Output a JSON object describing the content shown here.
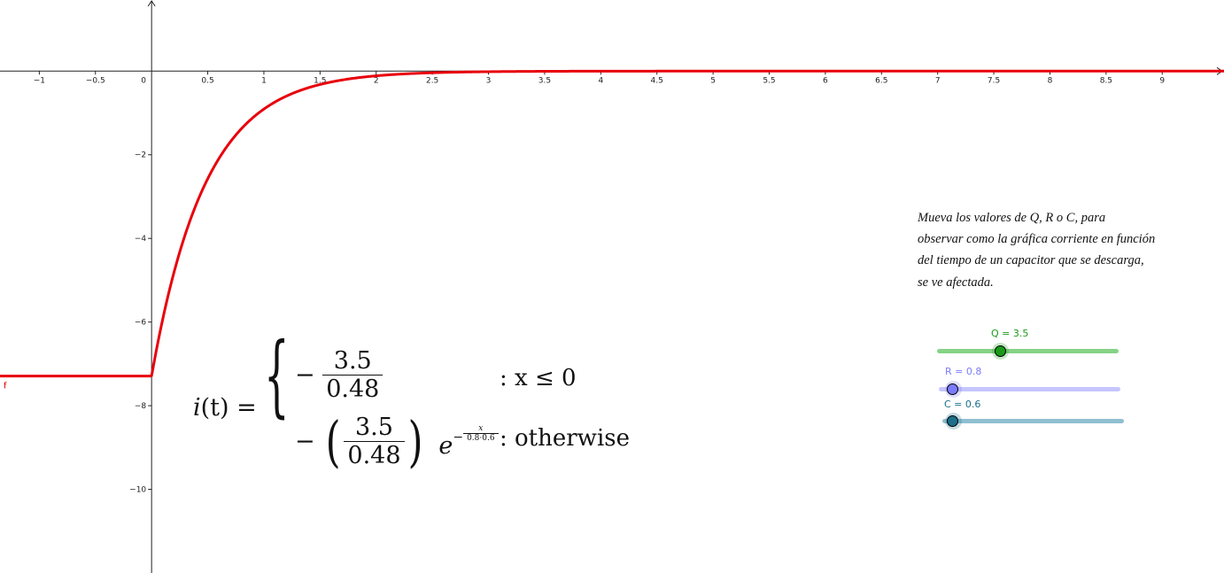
{
  "chart_data": {
    "type": "line",
    "function_name": "f",
    "series": [
      {
        "color": "#e8000b",
        "function": "piecewise: -Q/(R*C) for x<=0; -(Q/(R*C))*exp(-x/(R*C)) otherwise",
        "params": {
          "Q": 3.5,
          "R": 0.8,
          "C": 0.6
        }
      }
    ],
    "xlim": [
      -1.35,
      9.55
    ],
    "ylim": [
      -12,
      1.7
    ],
    "x_ticks": [
      -1,
      -0.5,
      0,
      0.5,
      1,
      1.5,
      2,
      2.5,
      3,
      3.5,
      4,
      4.5,
      5,
      5.5,
      6,
      6.5,
      7,
      7.5,
      8,
      8.5,
      9
    ],
    "x_tick_labels": [
      "−1",
      "−0.5",
      "0",
      "0.5",
      "1",
      "1.5",
      "2",
      "2.5",
      "3",
      "3.5",
      "4",
      "4.5",
      "5",
      "5.5",
      "6",
      "6.5",
      "7",
      "7.5",
      "8",
      "8.5",
      "9"
    ],
    "y_ticks": [
      -2,
      -4,
      -6,
      -8,
      -10
    ],
    "y_tick_labels": [
      "−2",
      "−4",
      "−6",
      "−8",
      "−10"
    ],
    "grid": false
  },
  "formula": {
    "lhs_func": "i",
    "lhs_arg": "(t) =",
    "case1_num": "3.5",
    "case1_den": "0.48",
    "case1_cond": ": x ≤ 0",
    "case2_num": "3.5",
    "case2_den": "0.48",
    "exp_base": "e",
    "exp_num": "x",
    "exp_den": "0.8·0.6",
    "case2_cond": ": otherwise"
  },
  "instructions": [
    "Mueva los valores de Q, R o C, para",
    "observar como la gráfica corriente en función",
    "del tiempo de un capacitor que se descarga,",
    "se ve afectada."
  ],
  "sliders": {
    "q": {
      "label": "Q = 3.5",
      "value": 3.5,
      "color": "#1a9a1a",
      "track_color": "#86d386",
      "fraction": 0.35
    },
    "r": {
      "label": "R = 0.8",
      "value": 0.8,
      "color": "#7b7bff",
      "track_color": "#c5c5ff",
      "fraction": 0.08
    },
    "c": {
      "label": "C = 0.6",
      "value": 0.6,
      "color": "#1b6f8a",
      "track_color": "#8fbfd1",
      "fraction": 0.06
    }
  }
}
